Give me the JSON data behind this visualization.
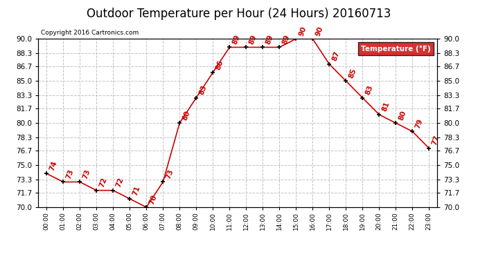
{
  "title": "Outdoor Temperature per Hour (24 Hours) 20160713",
  "copyright": "Copyright 2016 Cartronics.com",
  "legend_label": "Temperature (°F)",
  "hours": [
    "00:00",
    "01:00",
    "02:00",
    "03:00",
    "04:00",
    "05:00",
    "06:00",
    "07:00",
    "08:00",
    "09:00",
    "10:00",
    "11:00",
    "12:00",
    "13:00",
    "14:00",
    "15:00",
    "16:00",
    "17:00",
    "18:00",
    "19:00",
    "20:00",
    "21:00",
    "22:00",
    "23:00"
  ],
  "temps": [
    74,
    73,
    73,
    72,
    72,
    71,
    70,
    73,
    80,
    83,
    86,
    89,
    89,
    89,
    89,
    90,
    90,
    87,
    85,
    83,
    81,
    80,
    79,
    77
  ],
  "ylim": [
    70.0,
    90.0
  ],
  "yticks": [
    70.0,
    71.7,
    73.3,
    75.0,
    76.7,
    78.3,
    80.0,
    81.7,
    83.3,
    85.0,
    86.7,
    88.3,
    90.0
  ],
  "line_color": "#cc0000",
  "marker_color": "#000000",
  "label_color": "#cc0000",
  "grid_color": "#bbbbbb",
  "background_color": "#ffffff",
  "title_fontsize": 12,
  "legend_bg": "#cc0000",
  "legend_text_color": "#ffffff"
}
